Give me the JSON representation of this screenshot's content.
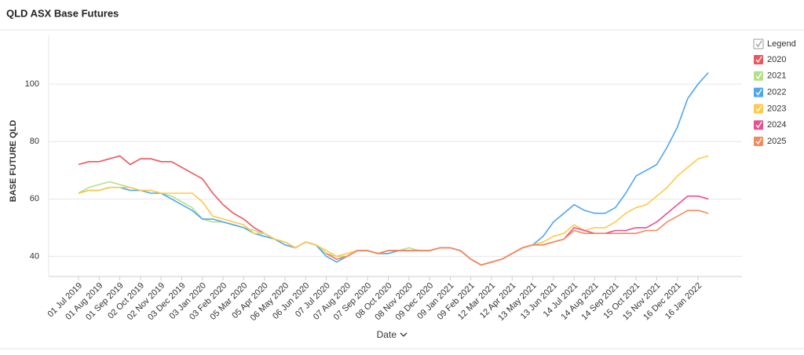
{
  "chart_data": {
    "type": "line",
    "title": "QLD ASX Base Futures",
    "x_label": "Date",
    "y_label": "BASE FUTURE QLD",
    "legend_title": "Legend",
    "legend_position": "right",
    "categories": [
      "01 Jul 2019",
      null,
      "01 Aug 2019",
      null,
      "01 Sep 2019",
      null,
      "02 Oct 2019",
      null,
      "02 Nov 2019",
      null,
      "03 Dec 2019",
      null,
      "03 Jan 2020",
      null,
      "03 Feb 2020",
      null,
      "05 Mar 2020",
      null,
      "05 Apr 2020",
      null,
      "06 May 2020",
      null,
      "06 Jun 2020",
      null,
      "07 Jul 2020",
      null,
      "07 Aug 2020",
      null,
      "07 Sep 2020",
      null,
      "08 Oct 2020",
      null,
      "08 Nov 2020",
      null,
      "09 Dec 2020",
      null,
      "09 Jan 2021",
      null,
      "09 Feb 2021",
      null,
      "12 Mar 2021",
      null,
      "12 Apr 2021",
      null,
      "13 May 2021",
      null,
      "13 Jun 2021",
      null,
      "14 Jul 2021",
      null,
      "14 Aug 2021",
      null,
      "14 Sep 2021",
      null,
      "15 Oct 2021",
      null,
      "15 Nov 2021",
      null,
      "16 Dec 2021",
      null,
      "16 Jan 2022",
      null
    ],
    "ylim": [
      33,
      117
    ],
    "yticks": [
      40,
      60,
      80,
      100
    ],
    "grid": true,
    "series": [
      {
        "name": "2020",
        "color": "#f0545c",
        "values": [
          72,
          73,
          73,
          74,
          75,
          72,
          74,
          74,
          73,
          73,
          71,
          69,
          67,
          62,
          58,
          55,
          53,
          50,
          48,
          46,
          45,
          43,
          45,
          44,
          41,
          39,
          40,
          42,
          42,
          41,
          42,
          42,
          42,
          42,
          42,
          43,
          null,
          null,
          null,
          null,
          null,
          null,
          null,
          null,
          null,
          null,
          null,
          null,
          null,
          null,
          null,
          null,
          null,
          null,
          null,
          null,
          null,
          null,
          null,
          null,
          null,
          null
        ]
      },
      {
        "name": "2021",
        "color": "#b5e08a",
        "values": [
          62,
          64,
          65,
          66,
          65,
          64,
          63,
          63,
          62,
          61,
          59,
          57,
          53,
          52,
          52,
          51,
          50,
          49,
          48,
          46,
          45,
          43,
          45,
          44,
          41,
          40,
          40,
          42,
          42,
          41,
          42,
          42,
          43,
          42,
          42,
          43,
          43,
          42,
          39,
          37,
          38,
          39,
          41,
          43,
          null,
          null,
          null,
          null,
          null,
          null,
          null,
          null,
          null,
          null,
          null,
          null,
          null,
          null,
          null,
          null,
          null,
          null
        ]
      },
      {
        "name": "2022",
        "color": "#4ea6f0",
        "values": [
          62,
          63,
          63,
          64,
          64,
          63,
          63,
          62,
          62,
          60,
          58,
          56,
          53,
          53,
          52,
          51,
          50,
          48,
          47,
          46,
          44,
          43,
          45,
          44,
          40,
          38,
          40,
          42,
          42,
          41,
          41,
          42,
          42,
          42,
          42,
          43,
          43,
          42,
          39,
          37,
          38,
          39,
          41,
          43,
          44,
          47,
          52,
          55,
          58,
          56,
          55,
          55,
          57,
          62,
          68,
          70,
          72,
          78,
          85,
          95,
          100,
          104
        ]
      },
      {
        "name": "2023",
        "color": "#ffc94a",
        "values": [
          62,
          63,
          63,
          64,
          64,
          64,
          63,
          63,
          62,
          62,
          62,
          62,
          59,
          54,
          53,
          52,
          51,
          48,
          48,
          46,
          45,
          43,
          45,
          44,
          42,
          40,
          41,
          42,
          42,
          41,
          42,
          42,
          42,
          42,
          42,
          43,
          43,
          42,
          39,
          37,
          38,
          39,
          41,
          43,
          44,
          45,
          47,
          48,
          51,
          49,
          50,
          50,
          52,
          55,
          57,
          58,
          61,
          64,
          68,
          71,
          74,
          75
        ]
      },
      {
        "name": "2024",
        "color": "#ec4f8f",
        "values": [
          null,
          null,
          null,
          null,
          null,
          null,
          null,
          null,
          null,
          null,
          null,
          null,
          null,
          null,
          null,
          null,
          null,
          null,
          null,
          null,
          null,
          null,
          null,
          null,
          41,
          39,
          40,
          42,
          42,
          41,
          42,
          42,
          42,
          42,
          42,
          43,
          43,
          42,
          39,
          37,
          38,
          39,
          41,
          43,
          44,
          44,
          45,
          46,
          50,
          49,
          48,
          48,
          49,
          49,
          50,
          50,
          52,
          55,
          58,
          61,
          61,
          60
        ]
      },
      {
        "name": "2025",
        "color": "#f48a5a",
        "values": [
          null,
          null,
          null,
          null,
          null,
          null,
          null,
          null,
          null,
          null,
          null,
          null,
          null,
          null,
          null,
          null,
          null,
          null,
          null,
          null,
          null,
          null,
          null,
          null,
          41,
          39,
          40,
          42,
          42,
          41,
          42,
          42,
          42,
          42,
          42,
          43,
          43,
          42,
          39,
          37,
          38,
          39,
          41,
          43,
          44,
          44,
          45,
          46,
          49,
          48,
          48,
          48,
          48,
          48,
          48,
          49,
          49,
          52,
          54,
          56,
          56,
          55
        ]
      }
    ]
  }
}
